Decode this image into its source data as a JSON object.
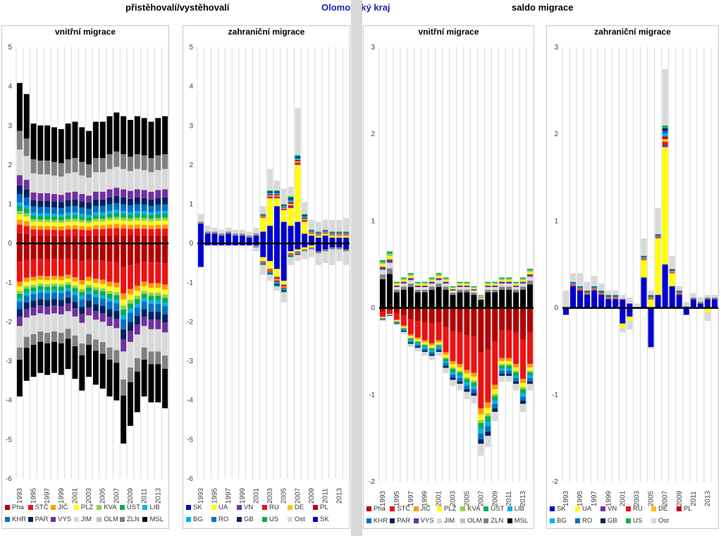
{
  "header": {
    "left": "přistěhovalí/vystěhovalí",
    "center": "Olomoucký kraj",
    "right": "saldo migrace"
  },
  "regions": [
    {
      "code": "Pha",
      "color": "#b10000"
    },
    {
      "code": "STČ",
      "color": "#ee1111"
    },
    {
      "code": "JIČ",
      "color": "#ff9900"
    },
    {
      "code": "PLZ",
      "color": "#ffff00"
    },
    {
      "code": "KVA",
      "color": "#92d050"
    },
    {
      "code": "ÚST",
      "color": "#00b050"
    },
    {
      "code": "LIB",
      "color": "#00b0f0"
    },
    {
      "code": "KHR",
      "color": "#0070c0"
    },
    {
      "code": "PAR",
      "color": "#002060"
    },
    {
      "code": "VYS",
      "color": "#7030a0"
    },
    {
      "code": "JIM",
      "color": "#d9d9d9"
    },
    {
      "code": "OLM",
      "color": "#bfbfbf"
    },
    {
      "code": "ZLN",
      "color": "#808080"
    },
    {
      "code": "MSL",
      "color": "#000000"
    }
  ],
  "countries": [
    {
      "code": "SK",
      "color": "#0000cc"
    },
    {
      "code": "UA",
      "color": "#ffff00"
    },
    {
      "code": "VN",
      "color": "#7030a0"
    },
    {
      "code": "RU",
      "color": "#ee1111"
    },
    {
      "code": "DE",
      "color": "#ffc000"
    },
    {
      "code": "PL",
      "color": "#c00000"
    },
    {
      "code": "BG",
      "color": "#00b0f0"
    },
    {
      "code": "RO",
      "color": "#0070c0"
    },
    {
      "code": "GB",
      "color": "#002060"
    },
    {
      "code": "US",
      "color": "#00b050"
    },
    {
      "code": "Ost",
      "color": "#d9d9d9"
    }
  ],
  "chart_data": [
    {
      "type": "bar",
      "title": "vnitřní migrace",
      "group": "přistěhovalí/vystěhovalí",
      "stacked": true,
      "ylim": [
        -6,
        5
      ],
      "yticks": [
        -6,
        -5,
        -4,
        -3,
        -2,
        -1,
        0,
        1,
        2,
        3,
        4,
        5
      ],
      "x": [
        1993,
        1994,
        1995,
        1996,
        1997,
        1998,
        1999,
        2000,
        2001,
        2002,
        2003,
        2004,
        2005,
        2006,
        2007,
        2008,
        2009,
        2010,
        2011,
        2012,
        2013,
        2014
      ],
      "xtick_labels": [
        "1993",
        "1995",
        "1997",
        "1999",
        "2001",
        "2003",
        "2005",
        "2007",
        "2009",
        "2011",
        "2013"
      ],
      "positive_totals": [
        4.35,
        4.05,
        3.25,
        3.2,
        3.2,
        3.15,
        3.1,
        3.25,
        3.3,
        3.15,
        3.05,
        3.3,
        3.3,
        3.45,
        3.55,
        3.45,
        3.35,
        3.45,
        3.4,
        3.3,
        3.4,
        3.45
      ],
      "negative_totals": [
        -3.9,
        -3.5,
        -3.4,
        -3.3,
        -3.35,
        -3.3,
        -3.35,
        -3.2,
        -3.45,
        -3.75,
        -3.4,
        -3.6,
        -3.7,
        -3.9,
        -4.0,
        -5.1,
        -4.65,
        -4.3,
        -3.9,
        -4.05,
        -4.05,
        -4.2
      ],
      "series": [
        {
          "name": "Pha",
          "pos_share": 0.06,
          "neg_share": 0.12
        },
        {
          "name": "STČ",
          "pos_share": 0.05,
          "neg_share": 0.13
        },
        {
          "name": "JIČ",
          "pos_share": 0.03,
          "neg_share": 0.03
        },
        {
          "name": "PLZ",
          "pos_share": 0.03,
          "neg_share": 0.03
        },
        {
          "name": "KVA",
          "pos_share": 0.02,
          "neg_share": 0.02
        },
        {
          "name": "ÚST",
          "pos_share": 0.03,
          "neg_share": 0.03
        },
        {
          "name": "LIB",
          "pos_share": 0.02,
          "neg_share": 0.02
        },
        {
          "name": "KHR",
          "pos_share": 0.05,
          "neg_share": 0.05
        },
        {
          "name": "PAR",
          "pos_share": 0.05,
          "neg_share": 0.05
        },
        {
          "name": "VYS",
          "pos_share": 0.06,
          "neg_share": 0.06
        },
        {
          "name": "JIM",
          "pos_share": 0.15,
          "neg_share": 0.14
        },
        {
          "name": "OLM",
          "pos_share": 0.0,
          "neg_share": 0.0
        },
        {
          "name": "ZLN",
          "pos_share": 0.11,
          "neg_share": 0.08
        },
        {
          "name": "MSL",
          "pos_share": 0.28,
          "neg_share": 0.24
        }
      ],
      "legend": [
        "Pha",
        "STČ",
        "JIČ",
        "PLZ",
        "KVA",
        "ÚST",
        "LIB",
        "KHR",
        "PAR",
        "VYS",
        "JIM",
        "OLM",
        "ZLN",
        "MSL"
      ]
    },
    {
      "type": "bar",
      "title": "zahraniční migrace",
      "group": "přistěhovalí/vystěhovalí",
      "stacked": true,
      "ylim": [
        -6,
        5
      ],
      "yticks": [
        -6,
        -5,
        -4,
        -3,
        -2,
        -1,
        0,
        1,
        2,
        3,
        4,
        5
      ],
      "x": [
        1993,
        1994,
        1995,
        1996,
        1997,
        1998,
        1999,
        2000,
        2001,
        2002,
        2003,
        2004,
        2005,
        2006,
        2007,
        2008,
        2009,
        2010,
        2011,
        2012,
        2013,
        2014
      ],
      "xtick_labels": [
        "1993",
        "1995",
        "1997",
        "1999",
        "2001",
        "2003",
        "2005",
        "2007",
        "2009",
        "2011",
        "2013"
      ],
      "positive": {
        "SK": [
          0.5,
          0.25,
          0.25,
          0.2,
          0.25,
          0.2,
          0.2,
          0.15,
          0.2,
          0.3,
          0.45,
          0.95,
          0.55,
          0.45,
          0.55,
          0.25,
          0.2,
          0.15,
          0.2,
          0.15,
          0.15,
          0.15
        ],
        "UA": [
          0.0,
          0.0,
          0.0,
          0.0,
          0.0,
          0.0,
          0.0,
          0.0,
          0.0,
          0.35,
          0.7,
          0.2,
          0.3,
          0.45,
          1.45,
          0.3,
          0.05,
          0.05,
          0.05,
          0.05,
          0.05,
          0.05
        ],
        "other": [
          0.05,
          0.05,
          0.05,
          0.05,
          0.05,
          0.05,
          0.05,
          0.05,
          0.05,
          0.1,
          0.2,
          0.2,
          0.15,
          0.3,
          0.25,
          0.2,
          0.1,
          0.1,
          0.1,
          0.1,
          0.1,
          0.1
        ],
        "Ost": [
          0.2,
          0.15,
          0.1,
          0.1,
          0.1,
          0.1,
          0.1,
          0.1,
          0.15,
          0.2,
          0.55,
          0.25,
          0.4,
          0.25,
          1.2,
          0.3,
          0.25,
          0.25,
          0.25,
          0.3,
          0.3,
          0.35
        ]
      },
      "negative": {
        "SK": [
          -0.6,
          -0.05,
          -0.05,
          -0.05,
          -0.05,
          -0.05,
          -0.05,
          -0.05,
          -0.05,
          -0.35,
          -0.45,
          -0.65,
          -0.95,
          -0.2,
          -0.15,
          -0.1,
          -0.05,
          -0.2,
          -0.15,
          -0.1,
          -0.1,
          -0.15
        ],
        "UA": [
          0.0,
          0.0,
          0.0,
          0.0,
          0.0,
          0.0,
          0.0,
          0.0,
          0.0,
          -0.1,
          -0.2,
          -0.2,
          -0.1,
          -0.05,
          -0.05,
          -0.05,
          -0.05,
          0.0,
          0.0,
          0.0,
          0.0,
          0.0
        ],
        "other": [
          0.0,
          -0.02,
          -0.02,
          -0.02,
          -0.02,
          -0.02,
          -0.02,
          -0.02,
          -0.05,
          -0.1,
          -0.15,
          -0.25,
          -0.2,
          -0.1,
          -0.1,
          -0.05,
          -0.05,
          -0.05,
          -0.05,
          -0.05,
          -0.05,
          -0.05
        ],
        "Ost": [
          0.0,
          -0.02,
          -0.02,
          -0.02,
          -0.02,
          -0.02,
          -0.02,
          -0.02,
          -0.1,
          -0.25,
          -0.15,
          -0.1,
          -0.25,
          -0.2,
          -0.15,
          -0.2,
          -0.2,
          -0.3,
          -0.3,
          -0.4,
          -0.3,
          -0.35
        ]
      },
      "legend": [
        "SK",
        "UA",
        "VN",
        "RU",
        "DE",
        "PL",
        "BG",
        "RO",
        "GB",
        "US",
        "Ost",
        "SK"
      ]
    },
    {
      "type": "bar",
      "title": "vnitřní migrace",
      "group": "saldo migrace",
      "stacked": true,
      "ylim": [
        -2,
        3
      ],
      "yticks": [
        -2,
        -1,
        0,
        1,
        2,
        3
      ],
      "x": [
        1993,
        1994,
        1995,
        1996,
        1997,
        1998,
        1999,
        2000,
        2001,
        2002,
        2003,
        2004,
        2005,
        2006,
        2007,
        2008,
        2009,
        2010,
        2011,
        2012,
        2013,
        2014
      ],
      "xtick_labels": [
        "1993",
        "1995",
        "1997",
        "1999",
        "2001",
        "2003",
        "2005",
        "2007",
        "2009",
        "2011",
        "2013"
      ],
      "positive_totals": [
        0.55,
        0.65,
        0.3,
        0.35,
        0.4,
        0.3,
        0.3,
        0.35,
        0.4,
        0.35,
        0.25,
        0.3,
        0.3,
        0.25,
        0.15,
        0.3,
        0.3,
        0.35,
        0.35,
        0.3,
        0.35,
        0.45
      ],
      "negative_totals": [
        -0.15,
        -0.1,
        -0.2,
        -0.3,
        -0.45,
        -0.5,
        -0.55,
        -0.6,
        -0.55,
        -0.75,
        -0.9,
        -0.95,
        -1.05,
        -1.1,
        -1.7,
        -1.6,
        -1.3,
        -0.85,
        -0.85,
        -0.95,
        -1.2,
        -0.95
      ],
      "positive_series": [
        {
          "name": "MSL",
          "share": 0.6
        },
        {
          "name": "ZLN",
          "share": 0.1
        },
        {
          "name": "JIM",
          "share": 0.1
        },
        {
          "name": "VYS",
          "share": 0.06
        },
        {
          "name": "PLZ",
          "share": 0.06
        },
        {
          "name": "KVA",
          "share": 0.04
        },
        {
          "name": "ÚST",
          "share": 0.04
        }
      ],
      "negative_series": [
        {
          "name": "Pha",
          "share": 0.3
        },
        {
          "name": "STČ",
          "share": 0.38
        },
        {
          "name": "JIČ",
          "share": 0.04
        },
        {
          "name": "PLZ",
          "share": 0.04
        },
        {
          "name": "KVA",
          "share": 0.02
        },
        {
          "name": "ÚST",
          "share": 0.04
        },
        {
          "name": "LIB",
          "share": 0.03
        },
        {
          "name": "KHR",
          "share": 0.04
        },
        {
          "name": "PAR",
          "share": 0.03
        },
        {
          "name": "JIM",
          "share": 0.08
        }
      ],
      "legend": [
        "Pha",
        "STČ",
        "JIČ",
        "PLZ",
        "KVA",
        "ÚST",
        "LIB",
        "KHR",
        "PAR",
        "VYS",
        "JIM",
        "OLM",
        "ZLN",
        "MSL"
      ]
    },
    {
      "type": "bar",
      "title": "zahraniční migrace",
      "group": "saldo migrace",
      "stacked": true,
      "ylim": [
        -2,
        3
      ],
      "yticks": [
        -2,
        -1,
        0,
        1,
        2,
        3
      ],
      "x": [
        1993,
        1994,
        1995,
        1996,
        1997,
        1998,
        1999,
        2000,
        2001,
        2002,
        2003,
        2004,
        2005,
        2006,
        2007,
        2008,
        2009,
        2010,
        2011,
        2012,
        2013,
        2014
      ],
      "xtick_labels": [
        "1993",
        "1995",
        "1997",
        "1999",
        "2001",
        "2003",
        "2005",
        "2007",
        "2009",
        "2011",
        "2013"
      ],
      "positive": {
        "SK": [
          0.0,
          0.25,
          0.2,
          0.15,
          0.2,
          0.15,
          0.1,
          0.1,
          0.1,
          0.05,
          0.0,
          0.35,
          0.0,
          0.15,
          0.5,
          0.25,
          0.15,
          0.0,
          0.1,
          0.05,
          0.1,
          0.1
        ],
        "UA": [
          0.0,
          0.0,
          0.0,
          0.0,
          0.0,
          0.0,
          0.0,
          0.0,
          0.0,
          0.0,
          0.0,
          0.2,
          0.1,
          0.65,
          1.35,
          0.15,
          0.0,
          0.0,
          0.0,
          0.0,
          0.0,
          0.0
        ],
        "VN": [
          0.0,
          0.02,
          0.02,
          0.02,
          0.02,
          0.02,
          0.02,
          0.02,
          0.0,
          0.0,
          0.0,
          0.05,
          0.05,
          0.25,
          0.3,
          0.05,
          0.02,
          0.02,
          0.02,
          0.02,
          0.02,
          0.02
        ],
        "other": [
          0.0,
          0.05,
          0.05,
          0.05,
          0.05,
          0.05,
          0.05,
          0.05,
          0.0,
          0.0,
          0.0,
          0.05,
          0.05,
          0.05,
          0.25,
          0.05,
          0.05,
          0.02,
          0.02,
          0.02,
          0.02,
          0.02
        ],
        "Ost": [
          0.2,
          0.1,
          0.15,
          0.1,
          0.12,
          0.08,
          0.05,
          0.05,
          0.05,
          0.07,
          0.05,
          0.2,
          0.05,
          0.3,
          0.65,
          0.15,
          0.05,
          0.05,
          0.05,
          0.05,
          0.03,
          0.03
        ]
      },
      "negative": {
        "SK": [
          -0.08,
          0.0,
          0.0,
          0.0,
          0.0,
          0.0,
          0.0,
          0.0,
          -0.18,
          -0.1,
          0.0,
          0.0,
          -0.45,
          0.0,
          0.0,
          0.0,
          0.0,
          -0.08,
          0.0,
          0.0,
          0.0,
          0.0
        ],
        "UA": [
          0.0,
          0.0,
          0.0,
          0.0,
          0.0,
          0.0,
          0.0,
          0.0,
          -0.05,
          -0.05,
          0.0,
          0.0,
          0.0,
          0.0,
          0.0,
          0.0,
          0.0,
          0.0,
          0.0,
          0.0,
          -0.05,
          0.0
        ],
        "other": [
          0.0,
          0.0,
          0.0,
          0.0,
          0.0,
          0.0,
          0.0,
          0.0,
          0.0,
          0.0,
          0.0,
          0.0,
          0.0,
          0.0,
          0.0,
          0.0,
          0.0,
          0.0,
          0.0,
          0.0,
          0.0,
          0.0
        ],
        "Ost": [
          0.0,
          0.0,
          0.0,
          0.0,
          0.0,
          0.0,
          0.0,
          0.0,
          -0.05,
          -0.1,
          0.0,
          0.0,
          -0.02,
          0.0,
          0.0,
          0.0,
          0.0,
          0.0,
          0.0,
          0.0,
          -0.1,
          0.0
        ]
      },
      "legend": [
        "SK",
        "UA",
        "VN",
        "RU",
        "DE",
        "PL",
        "BG",
        "RO",
        "GB",
        "US",
        "Ost"
      ]
    }
  ]
}
